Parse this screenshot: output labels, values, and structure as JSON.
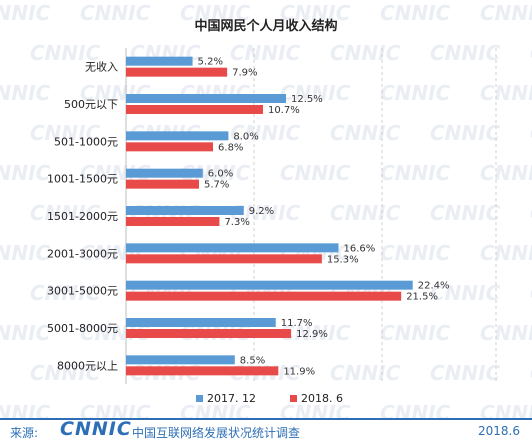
{
  "colors": {
    "series_2017": "#5b9bd5",
    "series_2018": "#e84a4a",
    "footer_accent": "#2d6fb6",
    "watermark": "#d9e1ec"
  },
  "watermark_text": "CNNIC",
  "chart_data": {
    "type": "bar",
    "orientation": "horizontal",
    "title": "中国网民个人月收入结构",
    "categories": [
      "无收入",
      "500元以下",
      "501-1000元",
      "1001-1500元",
      "1501-2000元",
      "2001-3000元",
      "3001-5000元",
      "5001-8000元",
      "8000元以上"
    ],
    "series": [
      {
        "name": "2017. 12",
        "values": [
          5.2,
          12.5,
          8.0,
          6.0,
          9.2,
          16.6,
          22.4,
          11.7,
          8.5
        ],
        "labels": [
          "5.2%",
          "12.5%",
          "8.0%",
          "6.0%",
          "9.2%",
          "16.6%",
          "22.4%",
          "11.7%",
          "8.5%"
        ]
      },
      {
        "name": "2018. 6",
        "values": [
          7.9,
          10.7,
          6.8,
          5.7,
          7.3,
          15.3,
          21.5,
          12.9,
          11.9
        ],
        "labels": [
          "7.9%",
          "10.7%",
          "6.8%",
          "5.7%",
          "7.3%",
          "15.3%",
          "21.5%",
          "12.9%",
          "11.9%"
        ]
      }
    ],
    "xlim": [
      0,
      25
    ],
    "grid": "vertical-dashed",
    "legend_position": "bottom"
  },
  "footer": {
    "source_label": "来源:",
    "logo": "CNNIC",
    "org_name": "中国互联网络发展状况统计调查",
    "date": "2018.6"
  }
}
